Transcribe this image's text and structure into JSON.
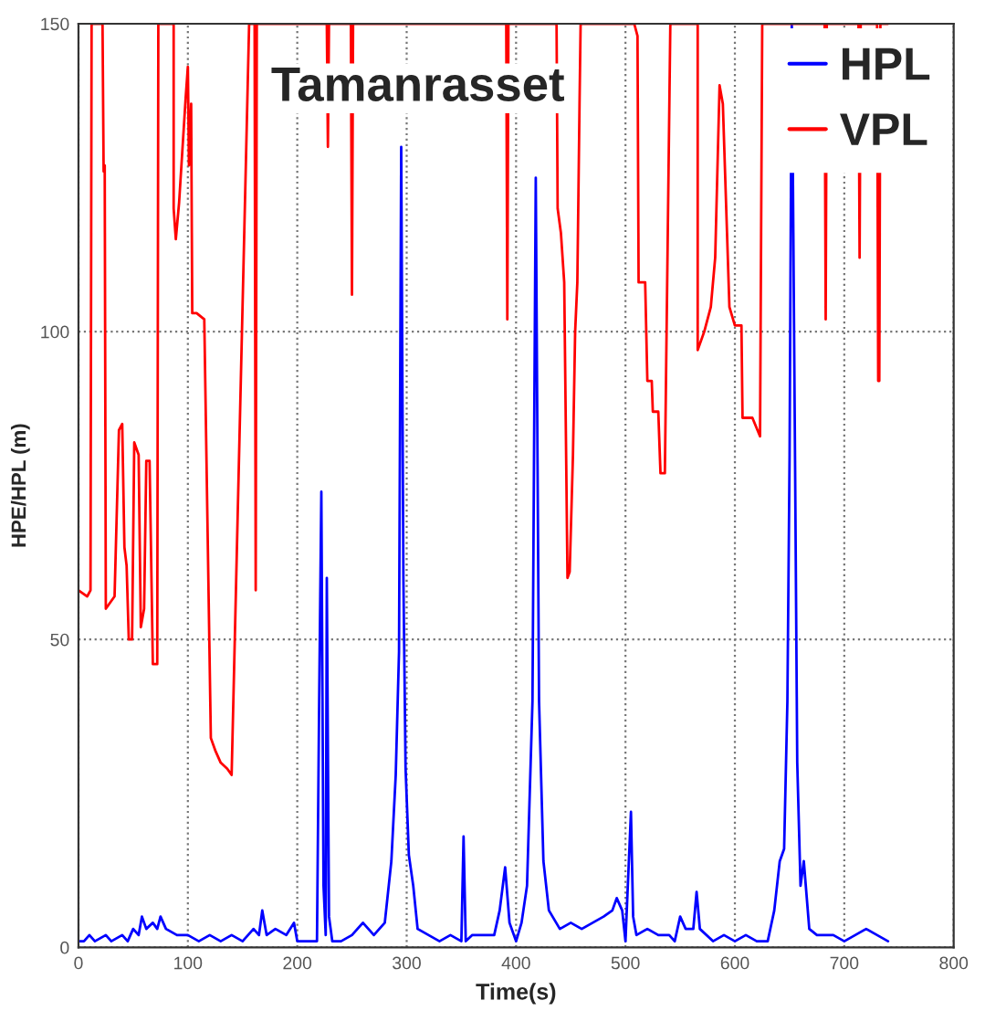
{
  "chart_data": {
    "type": "line",
    "title": "Tamanrasset",
    "xlabel": "Time(s)",
    "ylabel": "HPE/HPL (m)",
    "xlim": [
      0,
      800
    ],
    "xticks": [
      0,
      100,
      200,
      300,
      400,
      500,
      600,
      700,
      800
    ],
    "ylim": [
      0,
      150
    ],
    "yticks": [
      0,
      50,
      100,
      150
    ],
    "grid": true,
    "legend": "top right",
    "line_style": "solid",
    "marker": "none",
    "series": [
      {
        "name": "HPL",
        "color": "#0000ff",
        "x": [
          0,
          5,
          10,
          15,
          25,
          30,
          40,
          45,
          50,
          55,
          58,
          62,
          68,
          72,
          75,
          80,
          90,
          100,
          110,
          120,
          130,
          140,
          150,
          160,
          165,
          168,
          172,
          180,
          190,
          197,
          200,
          210,
          218,
          220,
          222,
          224,
          226,
          227,
          229,
          232,
          240,
          250,
          260,
          270,
          280,
          286,
          290,
          293,
          295,
          297,
          299,
          302,
          306,
          310,
          320,
          330,
          340,
          350,
          352,
          354,
          360,
          370,
          380,
          385,
          390,
          394,
          400,
          405,
          410,
          415,
          418,
          421,
          425,
          430,
          440,
          450,
          460,
          470,
          480,
          488,
          492,
          497,
          500,
          505,
          507,
          510,
          520,
          530,
          540,
          545,
          550,
          555,
          562,
          565,
          568,
          580,
          590,
          600,
          610,
          620,
          630,
          636,
          641,
          645,
          648,
          650,
          652,
          655,
          657,
          660,
          663,
          668,
          675,
          690,
          700,
          710,
          720,
          730,
          740
        ],
        "values": [
          1,
          1,
          2,
          1,
          2,
          1,
          2,
          1,
          3,
          2,
          5,
          3,
          4,
          3,
          5,
          3,
          2,
          2,
          1,
          2,
          1,
          2,
          1,
          3,
          2,
          6,
          2,
          3,
          2,
          4,
          1,
          1,
          1,
          40,
          74,
          10,
          2,
          60,
          5,
          1,
          1,
          2,
          4,
          2,
          4,
          14,
          28,
          48,
          130,
          60,
          29,
          15,
          10,
          3,
          2,
          1,
          2,
          1,
          18,
          1,
          2,
          2,
          2,
          6,
          13,
          4,
          1,
          4,
          10,
          40,
          125,
          40,
          14,
          6,
          3,
          4,
          3,
          4,
          5,
          6,
          8,
          6,
          1,
          22,
          5,
          2,
          3,
          2,
          2,
          1,
          5,
          3,
          3,
          9,
          3,
          1,
          2,
          1,
          2,
          1,
          1,
          6,
          14,
          16,
          40,
          80,
          150,
          79,
          30,
          10,
          14,
          3,
          2,
          2,
          1,
          2,
          3,
          2,
          1
        ]
      },
      {
        "name": "VPL",
        "color": "#ff0000",
        "x": [
          0,
          8,
          11,
          12,
          22,
          23,
          24,
          25,
          33,
          37,
          40,
          42,
          44,
          46,
          49,
          51,
          55,
          57,
          60,
          62,
          65,
          68,
          72,
          73,
          87,
          87,
          89,
          92,
          98,
          100,
          101,
          103,
          104,
          108,
          115,
          121,
          125,
          130,
          136,
          140,
          156,
          161,
          162,
          163,
          227,
          228,
          229,
          249,
          250,
          251,
          391,
          392,
          393,
          437,
          438,
          441,
          444,
          447,
          449,
          452,
          454,
          456,
          458,
          459,
          508,
          511,
          512,
          518,
          520,
          524,
          525,
          530,
          532,
          536,
          541,
          566,
          566,
          572,
          578,
          582,
          586,
          589,
          595,
          600,
          606,
          607,
          616,
          623,
          625,
          682,
          683,
          684,
          713,
          714,
          715,
          730,
          731,
          732,
          733,
          740
        ],
        "values": [
          58,
          57,
          58,
          150,
          150,
          126,
          127,
          55,
          57,
          84,
          85,
          65,
          62,
          50,
          50,
          82,
          80,
          52,
          55,
          79,
          79,
          46,
          46,
          150,
          150,
          120,
          115,
          121,
          138,
          143,
          127,
          137,
          103,
          103,
          102,
          34,
          32,
          30,
          29,
          28,
          150,
          150,
          58,
          150,
          150,
          130,
          150,
          150,
          106,
          150,
          150,
          102,
          150,
          150,
          120,
          116,
          108,
          60,
          61,
          80,
          100,
          108,
          137,
          150,
          150,
          148,
          108,
          108,
          92,
          92,
          87,
          87,
          77,
          77,
          150,
          150,
          97,
          100,
          104,
          112,
          140,
          137,
          104,
          101,
          101,
          86,
          86,
          83,
          150,
          150,
          102,
          150,
          150,
          112,
          150,
          150,
          92,
          92,
          150,
          150
        ]
      }
    ]
  }
}
